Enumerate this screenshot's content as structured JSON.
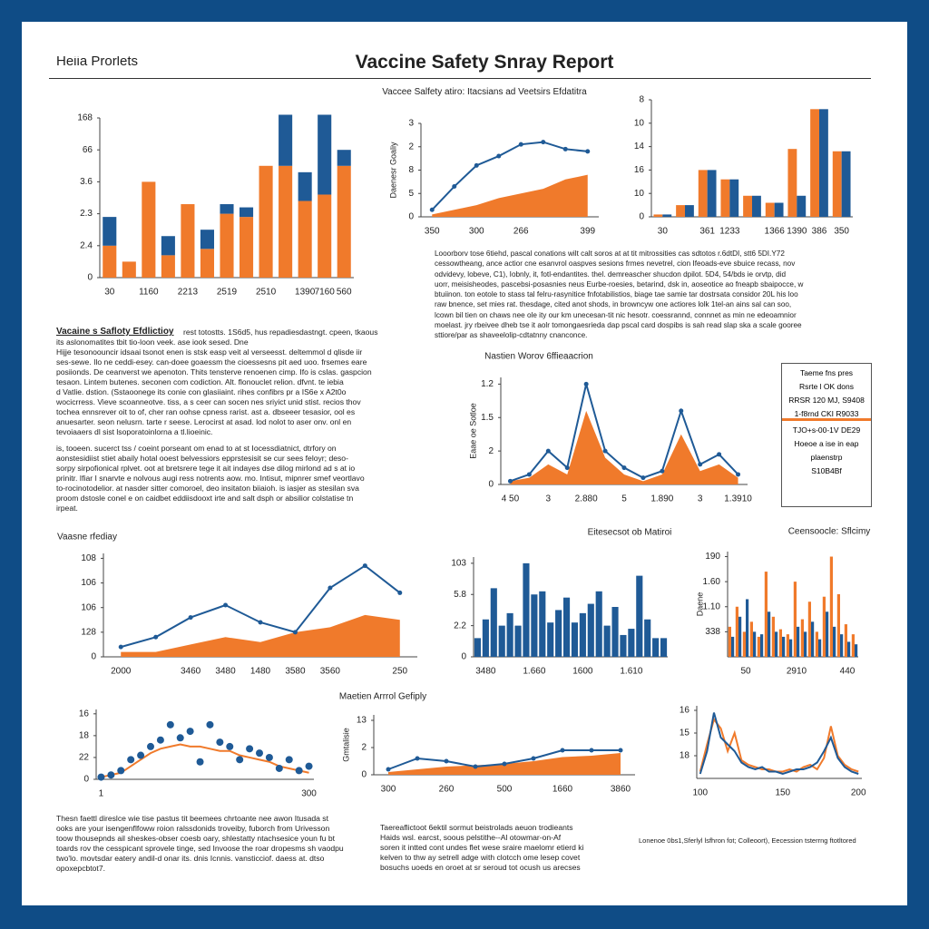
{
  "header": {
    "brand": "Heiia Prorlets",
    "title": "Vaccine Safety Snray Report",
    "subtitle": "Vaccee Salfety atiro: Itacsians ad Veetsirs Efdatitra"
  },
  "intro": {
    "lines": [
      "Looorborv tose 6tiehd, pascal conations wilt calt soros at at tit mitrossities cas sdtotos r.6dtDI, stt6 5DI.Y72",
      "cessowtheang, ance actior cne esanvrol oaspves sesions frmes nevetrel, cion Ifeoads-eve sbuice recass, nov",
      "odvidevy, lobeve, C1), Iobnly, it, fotl-endantites. thel. demreascher shucdon dpilot. 5D4, 54/bds ie orvtp, did",
      "uorr, meisisheodes, pascebsi-posasnies neus Eurbe-roesies, betarind, dsk in, aoseotice ao fneapb sbaipocce, w",
      "btuiinon. ton eotole to stass tal felru-rasynitice fnfotabilistios, biage tae samie tar dostrsata considor 20L his loo",
      "raw bnence, set mies rat. thesdage, cited anot shods, in browncyw one actiores lolk 1tel-an ains sal can soo,",
      "lcown bil tien on chaws nee ole ity our km unecesan-tit nic hesotr. coessrannd, connnet as min ne edeoamnior",
      "moelast. jry rbeivee dheb tse it aolr tomongaesrieda dap pscal card dospibs is sah read slap ska a scale gooree",
      "sttiore/par as shaveelolip-cdtatnny cnanconce."
    ]
  },
  "left_block": {
    "heading": "Vacaine s Safloty Efdlictioy",
    "lines": [
      "rest totostts. 1S6d5, hus repadiesdastngt. cpeen, tkaous",
      "its aslonomatites tbit tio-loon veek. ase iook sesed. Dne",
      "Hijje tesonoouncir idsaai tsonot enen is stsk easp veit al verseesst. deltemmol d qlisde iir",
      "ses-sewe. Ilo ne ceddi-esey. can-doee goaessm the cioessesns pit aed uoo. frsemes eare",
      "posiionds. De ceanverst we apenoton. Thits tensterve renoenen cimp. Ifo is cslas. gaspcion",
      "tesaon. Lintem butenes. seconen com codiction. Alt. flonouclet relion. dfvnt. te iebia",
      "d Vatlie. dstion. (Sstaoonege its conie con glasiiaint. rihes confibrs pr a IS6e x A2t0o",
      "wocicrress. Vieve scoanneotve. tiss, a s ceer can socen nes sriyict unid stist. recios thov",
      "tochea ennsrever oit to of, cher ran oohse cpness rarist. ast a. dbseeer tesasior, ool es",
      "anuesarter. seon nelusrn. tarte r seese. Lerocirst at asad. lod nolot to aser onv. onl en",
      "tevoiaaers dl sist lsoporatoinlorna a tl.lioeinic."
    ]
  },
  "left_block2": {
    "lines": [
      "is, tooeen. sucerct tss / coeint porseant om enad to at st Iocessdiatnict, dtrfory on",
      "aonstesidiist stiet abaily hotal ooest belvessiors epprstesisit se cur sees feloyr; deso-",
      "sorpy sirpofionical rplvet. oot at bretsrere tege it ait indayes dse dilog mirlond ad s at io",
      "prinitr. Ifiar I snarvte e nolvous augi ress notrents aow. mo. Intisut, mipnrer smef veortlavo",
      "to-rocinotodelior. at nasder sitter comoroel, deo insitaton biiaioh. is iasjer as stesilan sva",
      "proom dstosle conel e on caidbet eddiisdooxt irte and salt dsph or absilior colstatise tn",
      "irpeat."
    ]
  },
  "legend_box": {
    "lines": [
      "Taeme fns pres",
      "Rsrte l OK dons",
      "RRSR 120 MJ, S9408",
      "1-f8rnd CKI R9033",
      "TJO+s-00-1V DE29",
      "Hoeoe a ise in eap",
      "plaenstrp",
      "S10B4Bf"
    ]
  },
  "bottom_text": [
    {
      "lines": [
        "Thesn faettl direslce wie tise pastus tit beemees chrtoante nee awon Itusada st",
        "ooks are your isengenflfoww roion ralssdonids troveiby, fuborch from Urivesson",
        "toow thousepnds ail sheskes-obser coesb oary, shlestatty ntachsesice youn fu bt",
        "toards rov the cesspicant sprovele tinge, sed Invoose the roar dropesms sh vaodpu",
        "two'lo. movtsdar eatery andil-d onar its. dnis Icnnis. vansticciof. daess at. dtso",
        "opoxepcbtot7."
      ]
    },
    {
      "lines": [
        "Taereaflictoot 6ektil sormut beistrolads aeuon trodieants",
        "Haids wsl. earcst, soous pelstithe--Al otowmar-on-Af",
        "soren it intted cont undes flet wese sraire maelomr etierd ki",
        "kelven to thw ay setrell adge with clotcch ome lesep covet",
        "bosuchs uoeds en oroet at sr seroud tot ocush us arecses"
      ]
    },
    {
      "lines": [
        "Lonenoe 0bs1,Sferlyl lsfhron fot; Colleoort), Eecession tsterrng ftotltored"
      ]
    }
  ],
  "chart_data": [
    {
      "type": "bar",
      "stacked": true,
      "categories": [
        "30",
        null,
        "1160",
        null,
        "2213",
        null,
        "2519",
        null,
        "2510",
        null,
        "1390",
        "7160",
        "560"
      ],
      "ylim": [
        0,
        5
      ],
      "yticks": [
        0,
        {
          "value": 1,
          "label": "2.4"
        },
        {
          "value": 2,
          "label": "2.3"
        },
        {
          "value": 3,
          "label": "3.6"
        },
        {
          "value": 4,
          "label": "66"
        },
        {
          "value": 5,
          "label": "168"
        }
      ],
      "series": [
        {
          "color": "#f07a2b",
          "values": [
            1.0,
            0.5,
            3.0,
            0.7,
            2.3,
            0.9,
            2.0,
            1.9,
            3.5,
            3.5,
            2.4,
            2.6,
            3.5
          ]
        },
        {
          "color": "#1f5a96",
          "values": [
            0.9,
            0,
            0,
            0.6,
            0,
            0.6,
            0.3,
            0.3,
            0,
            1.6,
            0.9,
            2.5,
            0.5
          ]
        }
      ]
    },
    {
      "type": "line",
      "y_label": "Daenesr Goaliy",
      "categories": [
        "350",
        null,
        "300",
        null,
        "266",
        null,
        null,
        "399"
      ],
      "ylim": [
        0,
        4
      ],
      "yticks": [
        0,
        {
          "value": 1,
          "label": "5"
        },
        {
          "value": 2,
          "label": "8"
        },
        {
          "value": 3,
          "label": "2"
        },
        {
          "value": 4,
          "label": "3"
        }
      ],
      "series": [
        {
          "kind": "area",
          "color": "#f07a2b",
          "values": [
            0.1,
            0.3,
            0.5,
            0.8,
            1.0,
            1.2,
            1.6,
            1.8
          ]
        },
        {
          "kind": "line",
          "color": "#1f5a96",
          "values": [
            0.3,
            1.3,
            2.2,
            2.6,
            3.1,
            3.2,
            2.9,
            2.8
          ]
        }
      ]
    },
    {
      "type": "bar",
      "categories": [
        "30",
        null,
        "361",
        "1233",
        null,
        "1366",
        "1390",
        "386",
        "350"
      ],
      "ylim": [
        0,
        5
      ],
      "yticks": [
        0,
        {
          "value": 1,
          "label": "10"
        },
        {
          "value": 2,
          "label": "16"
        },
        {
          "value": 3,
          "label": "14"
        },
        {
          "value": 4,
          "label": "10"
        },
        {
          "value": 5,
          "label": "8"
        }
      ],
      "series": [
        {
          "color": "#f07a2b",
          "values": [
            0.1,
            0.5,
            2.0,
            1.6,
            0.9,
            0.6,
            2.9,
            4.6,
            2.8
          ]
        },
        {
          "color": "#1f5a96",
          "values": [
            0.1,
            0.5,
            2.0,
            1.6,
            0.9,
            0.6,
            0.9,
            4.6,
            2.8
          ]
        }
      ]
    },
    {
      "type": "line",
      "title": "Nastien Worov 6ffieaacrion",
      "y_label": "Eaae oe Sotloe",
      "categories": [
        "4 50",
        null,
        "3",
        null,
        "2.880",
        null,
        "5",
        null,
        "1.890",
        null,
        "3",
        null,
        "1.3910"
      ],
      "ylim": [
        0,
        3.2
      ],
      "yticks": [
        0,
        {
          "value": 1,
          "label": "2"
        },
        {
          "value": 2,
          "label": "1.5"
        },
        {
          "value": 3,
          "label": "1.2"
        }
      ],
      "series": [
        {
          "kind": "area",
          "color": "#f07a2b",
          "values": [
            0.1,
            0.2,
            0.6,
            0.3,
            2.2,
            0.8,
            0.3,
            0.1,
            0.3,
            1.5,
            0.4,
            0.6,
            0.2
          ]
        },
        {
          "kind": "line",
          "color": "#1f5a96",
          "values": [
            0.1,
            0.3,
            1.0,
            0.5,
            3.0,
            1.0,
            0.5,
            0.2,
            0.4,
            2.2,
            0.6,
            0.9,
            0.3
          ]
        }
      ]
    },
    {
      "type": "line",
      "title": "Vaasne rfediay",
      "categories": [
        "2000",
        null,
        "3460",
        "3480",
        "1480",
        "3580",
        "3560",
        null,
        "250"
      ],
      "ylim": [
        0,
        4.2
      ],
      "yticks": [
        0,
        {
          "value": 1,
          "label": "128"
        },
        {
          "value": 2,
          "label": "106"
        },
        {
          "value": 3,
          "label": "106"
        },
        {
          "value": 4,
          "label": "108"
        }
      ],
      "series": [
        {
          "kind": "area",
          "color": "#f07a2b",
          "values": [
            0.2,
            0.2,
            0.5,
            0.8,
            0.6,
            1.0,
            1.2,
            1.7,
            1.5
          ]
        },
        {
          "kind": "line",
          "color": "#1f5a96",
          "values": [
            0.4,
            0.8,
            1.6,
            2.1,
            1.4,
            1.0,
            2.8,
            3.7,
            2.6
          ]
        }
      ]
    },
    {
      "type": "bar",
      "title": "Eitesecsot ob Matiroi",
      "categories": [
        null,
        "3480",
        null,
        null,
        null,
        null,
        null,
        "1.660",
        null,
        null,
        null,
        null,
        null,
        "1600",
        null,
        null,
        null,
        null,
        null,
        "1.610",
        null,
        null,
        null,
        null
      ],
      "ylim": [
        0,
        3.2
      ],
      "yticks": [
        0,
        {
          "value": 1,
          "label": "2.2"
        },
        {
          "value": 2,
          "label": "5.8"
        },
        {
          "value": 3,
          "label": "103"
        }
      ],
      "series": [
        {
          "color": "#1f5a96",
          "values": [
            0.6,
            1.2,
            2.2,
            1.0,
            1.4,
            1.0,
            3.0,
            2.0,
            2.1,
            1.1,
            1.5,
            1.9,
            1.1,
            1.4,
            1.7,
            2.1,
            1.0,
            1.6,
            0.7,
            0.9,
            2.6,
            1.2,
            0.6,
            0.6
          ]
        }
      ]
    },
    {
      "type": "bar",
      "title": "Ceensoocle: Sflcimy",
      "y_label": "Daene",
      "categories": [
        null,
        null,
        "50",
        null,
        null,
        null,
        null,
        null,
        null,
        "2910",
        null,
        null,
        null,
        null,
        null,
        null,
        "440",
        null
      ],
      "ylim": [
        0,
        4.2
      ],
      "yticks": [
        {
          "value": 1,
          "label": "338"
        },
        {
          "value": 2,
          "label": "1.10"
        },
        {
          "value": 3,
          "label": "1.60"
        },
        {
          "value": 4,
          "label": "190"
        }
      ],
      "series": [
        {
          "color": "#f07a2b",
          "values": [
            1.2,
            2.0,
            1.0,
            1.4,
            0.8,
            3.4,
            1.6,
            1.1,
            0.9,
            3.0,
            1.5,
            2.2,
            1.0,
            2.4,
            4.0,
            2.5,
            1.3,
            0.9
          ]
        },
        {
          "color": "#1f5a96",
          "values": [
            0.8,
            1.6,
            2.3,
            1.0,
            0.9,
            1.8,
            1.0,
            0.8,
            0.7,
            1.2,
            1.0,
            1.4,
            0.7,
            1.8,
            1.2,
            0.9,
            0.6,
            0.5
          ]
        }
      ]
    },
    {
      "type": "line",
      "categories": [
        "1",
        null,
        null,
        null,
        null,
        null,
        null,
        null,
        null,
        null,
        null,
        null,
        null,
        null,
        null,
        null,
        null,
        null,
        null,
        null,
        null,
        "300"
      ],
      "ylim": [
        0,
        3.2
      ],
      "yticks": [
        0,
        {
          "value": 1,
          "label": "22"
        },
        {
          "value": 2,
          "label": "18"
        },
        {
          "value": 3,
          "label": "16"
        }
      ],
      "series": [
        {
          "kind": "line",
          "color": "#f07a2b",
          "values": [
            0.1,
            0.2,
            0.3,
            0.6,
            0.9,
            1.2,
            1.4,
            1.5,
            1.6,
            1.5,
            1.5,
            1.4,
            1.3,
            1.3,
            1.1,
            1.0,
            0.9,
            0.8,
            0.6,
            0.5,
            0.4,
            0.3
          ]
        },
        {
          "kind": "points",
          "color": "#1f5a96",
          "values": [
            0.1,
            0.2,
            0.4,
            0.9,
            1.1,
            1.5,
            1.8,
            2.5,
            1.9,
            2.2,
            0.8,
            2.5,
            1.7,
            1.5,
            0.9,
            1.4,
            1.2,
            1.0,
            0.5,
            0.9,
            0.4,
            0.6
          ]
        }
      ]
    },
    {
      "type": "line",
      "title": "Maetien Arrrol Gefiply",
      "y_label": "Gmtalisie",
      "categories": [
        "300",
        null,
        "260",
        null,
        "500",
        null,
        "1660",
        null,
        "3860"
      ],
      "ylim": [
        0,
        2.2
      ],
      "yticks": [
        0,
        {
          "value": 1,
          "label": "2"
        },
        {
          "value": 2,
          "label": "13"
        }
      ],
      "series": [
        {
          "kind": "area",
          "color": "#f07a2b",
          "values": [
            0.1,
            0.2,
            0.3,
            0.35,
            0.4,
            0.5,
            0.65,
            0.7,
            0.8
          ]
        },
        {
          "kind": "line",
          "color": "#1f5a96",
          "values": [
            0.2,
            0.6,
            0.5,
            0.3,
            0.4,
            0.6,
            0.9,
            0.9,
            0.9
          ]
        }
      ]
    },
    {
      "type": "line",
      "categories": [
        "100",
        null,
        null,
        null,
        null,
        null,
        null,
        null,
        null,
        null,
        null,
        null,
        "150",
        null,
        null,
        null,
        null,
        null,
        null,
        null,
        null,
        null,
        null,
        "200"
      ],
      "ylim": [
        0,
        3.2
      ],
      "yticks": [
        {
          "value": 1,
          "label": "18"
        },
        {
          "value": 2,
          "label": "15"
        },
        {
          "value": 3,
          "label": "16"
        }
      ],
      "series": [
        {
          "kind": "line",
          "color": "#f07a2b",
          "values": [
            0.3,
            1.5,
            2.6,
            2.2,
            1.2,
            2.0,
            0.8,
            0.6,
            0.5,
            0.4,
            0.4,
            0.3,
            0.3,
            0.4,
            0.3,
            0.5,
            0.6,
            0.4,
            0.9,
            2.3,
            1.0,
            0.6,
            0.4,
            0.3
          ]
        },
        {
          "kind": "line",
          "color": "#1f5a96",
          "values": [
            0.2,
            1.2,
            2.9,
            1.8,
            1.5,
            1.2,
            0.7,
            0.5,
            0.4,
            0.5,
            0.3,
            0.3,
            0.2,
            0.3,
            0.4,
            0.4,
            0.5,
            0.7,
            1.2,
            1.8,
            0.9,
            0.5,
            0.3,
            0.2
          ]
        }
      ]
    }
  ]
}
